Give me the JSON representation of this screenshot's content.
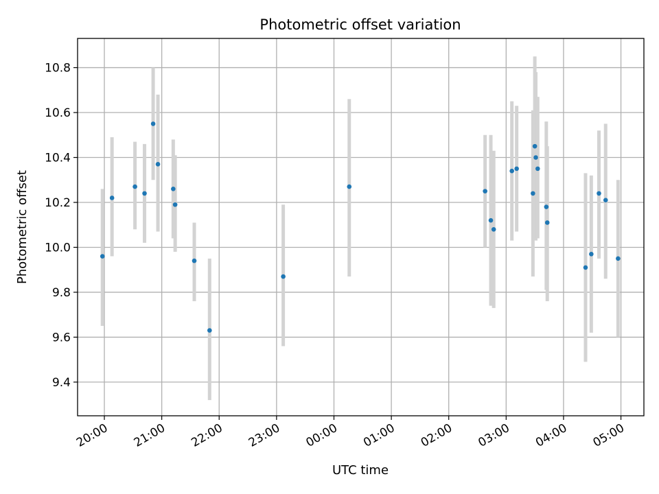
{
  "chart_data": {
    "type": "scatter",
    "title": "Photometric offset variation",
    "xlabel": "UTC time",
    "ylabel": "Photometric offset",
    "x_axis_type": "time",
    "xlim": [
      "19:32",
      "05:24"
    ],
    "ylim": [
      9.25,
      10.93
    ],
    "x_ticks": [
      "20:00",
      "21:00",
      "22:00",
      "23:00",
      "00:00",
      "01:00",
      "02:00",
      "03:00",
      "04:00",
      "05:00"
    ],
    "y_ticks": [
      9.4,
      9.6,
      9.8,
      10.0,
      10.2,
      10.4,
      10.6,
      10.8
    ],
    "y_tick_labels": [
      "9.4",
      "9.6",
      "9.8",
      "10.0",
      "10.2",
      "10.4",
      "10.6",
      "10.8"
    ],
    "grid": true,
    "legend": false,
    "colors": {
      "point": "#1f77b4",
      "errorbar": "#d3d3d3",
      "grid": "#b0b0b0"
    },
    "points": [
      {
        "x": "19:58",
        "y": 9.96,
        "ylow": 9.65,
        "yhigh": 10.26
      },
      {
        "x": "20:08",
        "y": 10.22,
        "ylow": 9.96,
        "yhigh": 10.49
      },
      {
        "x": "20:32",
        "y": 10.27,
        "ylow": 10.08,
        "yhigh": 10.47
      },
      {
        "x": "20:42",
        "y": 10.24,
        "ylow": 10.02,
        "yhigh": 10.46
      },
      {
        "x": "20:51",
        "y": 10.55,
        "ylow": 10.3,
        "yhigh": 10.8
      },
      {
        "x": "20:56",
        "y": 10.37,
        "ylow": 10.07,
        "yhigh": 10.68
      },
      {
        "x": "21:12",
        "y": 10.26,
        "ylow": 10.04,
        "yhigh": 10.48
      },
      {
        "x": "21:14",
        "y": 10.19,
        "ylow": 9.98,
        "yhigh": 10.41
      },
      {
        "x": "21:34",
        "y": 9.94,
        "ylow": 9.76,
        "yhigh": 10.11
      },
      {
        "x": "21:50",
        "y": 9.63,
        "ylow": 9.32,
        "yhigh": 9.95
      },
      {
        "x": "23:07",
        "y": 9.87,
        "ylow": 9.56,
        "yhigh": 10.19
      },
      {
        "x": "00:16",
        "y": 10.27,
        "ylow": 9.87,
        "yhigh": 10.66
      },
      {
        "x": "02:38",
        "y": 10.25,
        "ylow": 10.0,
        "yhigh": 10.5
      },
      {
        "x": "02:44",
        "y": 10.12,
        "ylow": 9.74,
        "yhigh": 10.5
      },
      {
        "x": "02:47",
        "y": 10.08,
        "ylow": 9.73,
        "yhigh": 10.43
      },
      {
        "x": "03:06",
        "y": 10.34,
        "ylow": 10.03,
        "yhigh": 10.65
      },
      {
        "x": "03:11",
        "y": 10.35,
        "ylow": 10.07,
        "yhigh": 10.63
      },
      {
        "x": "03:28",
        "y": 10.24,
        "ylow": 9.87,
        "yhigh": 10.61
      },
      {
        "x": "03:30",
        "y": 10.45,
        "ylow": 10.06,
        "yhigh": 10.85
      },
      {
        "x": "03:31",
        "y": 10.4,
        "ylow": 10.03,
        "yhigh": 10.78
      },
      {
        "x": "03:33",
        "y": 10.35,
        "ylow": 10.04,
        "yhigh": 10.67
      },
      {
        "x": "03:42",
        "y": 10.18,
        "ylow": 9.81,
        "yhigh": 10.56
      },
      {
        "x": "03:43",
        "y": 10.11,
        "ylow": 9.76,
        "yhigh": 10.45
      },
      {
        "x": "04:23",
        "y": 9.91,
        "ylow": 9.49,
        "yhigh": 10.33
      },
      {
        "x": "04:29",
        "y": 9.97,
        "ylow": 9.62,
        "yhigh": 10.32
      },
      {
        "x": "04:37",
        "y": 10.24,
        "ylow": 9.95,
        "yhigh": 10.52
      },
      {
        "x": "04:44",
        "y": 10.21,
        "ylow": 9.86,
        "yhigh": 10.55
      },
      {
        "x": "04:57",
        "y": 9.95,
        "ylow": 9.6,
        "yhigh": 10.3
      }
    ]
  }
}
